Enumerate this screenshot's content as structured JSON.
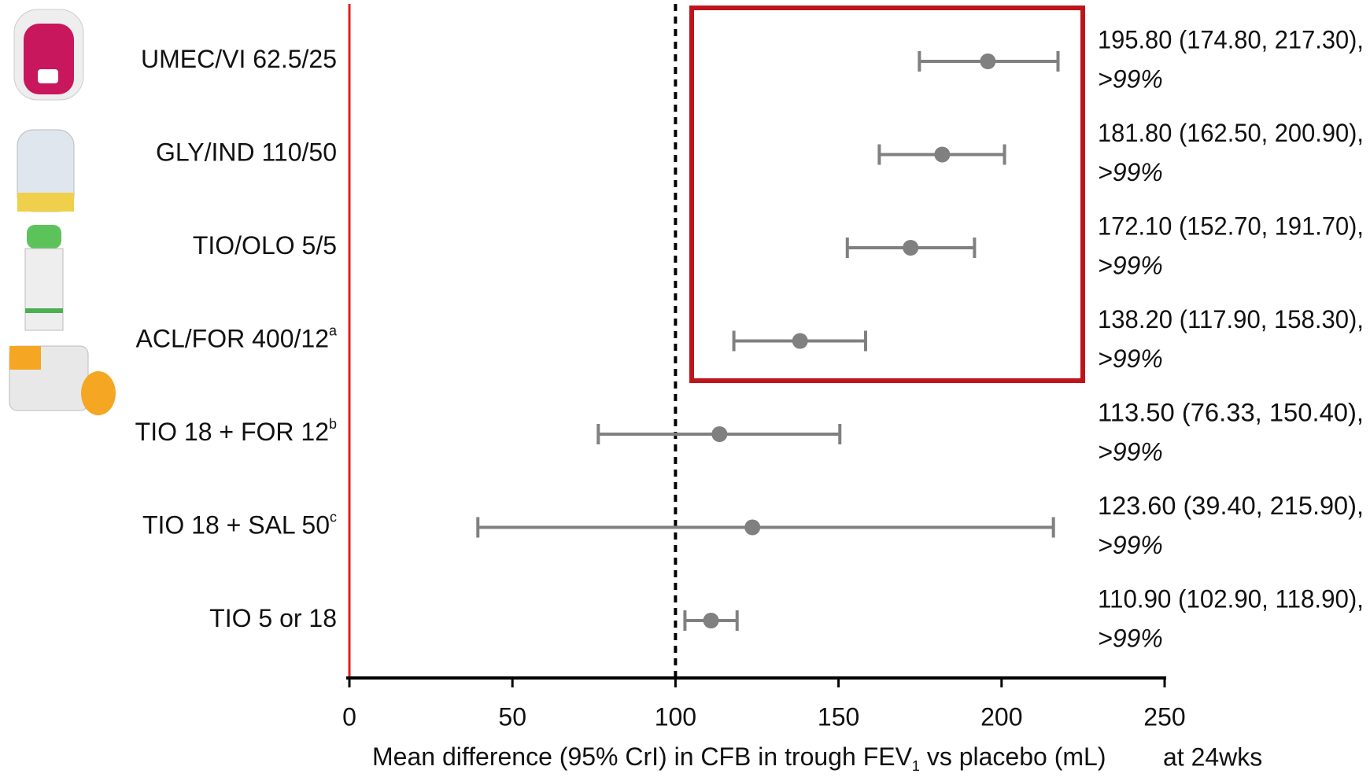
{
  "chart_data": {
    "type": "forest",
    "categories": [
      "UMEC/VI 62.5/25",
      "GLY/IND 110/50",
      "TIO/OLO 5/5",
      "ACL/FOR 400/12",
      "TIO 18 + FOR 12",
      "TIO 18 + SAL 50",
      "TIO 5 or 18"
    ],
    "category_superscripts": [
      null,
      null,
      null,
      "a",
      "b",
      "c",
      null
    ],
    "values": [
      195.8,
      181.8,
      172.1,
      138.2,
      113.5,
      123.6,
      110.9
    ],
    "lower": [
      174.8,
      162.5,
      152.7,
      117.9,
      76.33,
      39.4,
      102.9
    ],
    "upper": [
      217.3,
      200.9,
      191.7,
      158.3,
      150.4,
      215.9,
      118.9
    ],
    "value_labels": [
      "195.80 (174.80, 217.30),",
      "181.80 (162.50, 200.90),",
      "172.10 (152.70, 191.70),",
      "138.20 (117.90, 158.30),",
      "113.50 (76.33, 150.40),",
      "123.60 (39.40, 215.90),",
      "110.90 (102.90, 118.90),"
    ],
    "probability_labels": [
      ">99%",
      ">99%",
      ">99%",
      ">99%",
      ">99%",
      ">99%",
      ">99%"
    ],
    "color": "#808080",
    "reference_line": 100,
    "xlim": [
      0,
      250
    ],
    "xticks": [
      0,
      50,
      100,
      150,
      200,
      250
    ],
    "x_label": {
      "before": "Mean difference (95% CrI) in CFB in trough FEV",
      "subscript": "1",
      "after": " vs placebo (mL)"
    },
    "annotation": "at 24wks"
  }
}
